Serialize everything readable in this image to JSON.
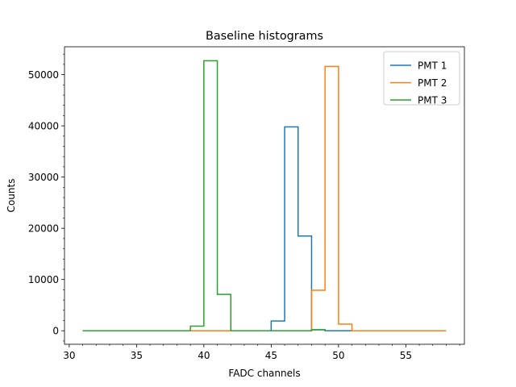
{
  "chart_data": {
    "type": "line",
    "title": "Baseline histograms",
    "xlabel": "FADC channels",
    "ylabel": "Counts",
    "xlim": [
      29.65,
      59.35
    ],
    "ylim": [
      -2640,
      55440
    ],
    "xticks": [
      30,
      35,
      40,
      45,
      50,
      55
    ],
    "yticks": [
      0,
      10000,
      20000,
      30000,
      40000,
      50000
    ],
    "minor_x_step": 1,
    "minor_y_step": 2000,
    "grid": false,
    "legend_position": "top-right",
    "series": [
      {
        "name": "PMT 1",
        "color": "#1f77b4",
        "edges": [
          31,
          32,
          33,
          34,
          35,
          36,
          37,
          38,
          39,
          40,
          41,
          42,
          43,
          44,
          45,
          46,
          47,
          48,
          49,
          50,
          51,
          52,
          53,
          54,
          55,
          56,
          57,
          58
        ],
        "counts": [
          0,
          0,
          0,
          0,
          0,
          0,
          0,
          0,
          0,
          0,
          0,
          0,
          0,
          0,
          1900,
          39800,
          18500,
          200,
          0,
          0,
          0,
          0,
          0,
          0,
          0,
          0,
          0
        ]
      },
      {
        "name": "PMT 2",
        "color": "#ff7f0e",
        "edges": [
          39,
          40,
          41,
          42,
          43,
          44,
          45,
          46,
          47,
          48,
          49,
          50,
          51,
          52,
          53,
          54,
          55,
          56,
          57,
          58
        ],
        "counts": [
          0,
          0,
          0,
          0,
          0,
          0,
          0,
          0,
          0,
          7900,
          51600,
          1300,
          0,
          0,
          0,
          0,
          0,
          0,
          0
        ]
      },
      {
        "name": "PMT 3",
        "color": "#2ca02c",
        "edges": [
          31,
          32,
          33,
          34,
          35,
          36,
          37,
          38,
          39,
          40,
          41,
          42,
          43,
          44,
          45,
          46,
          47,
          48,
          49
        ],
        "counts": [
          0,
          0,
          0,
          0,
          0,
          0,
          0,
          0,
          900,
          52700,
          7100,
          0,
          0,
          0,
          0,
          0,
          0,
          200
        ]
      }
    ]
  }
}
